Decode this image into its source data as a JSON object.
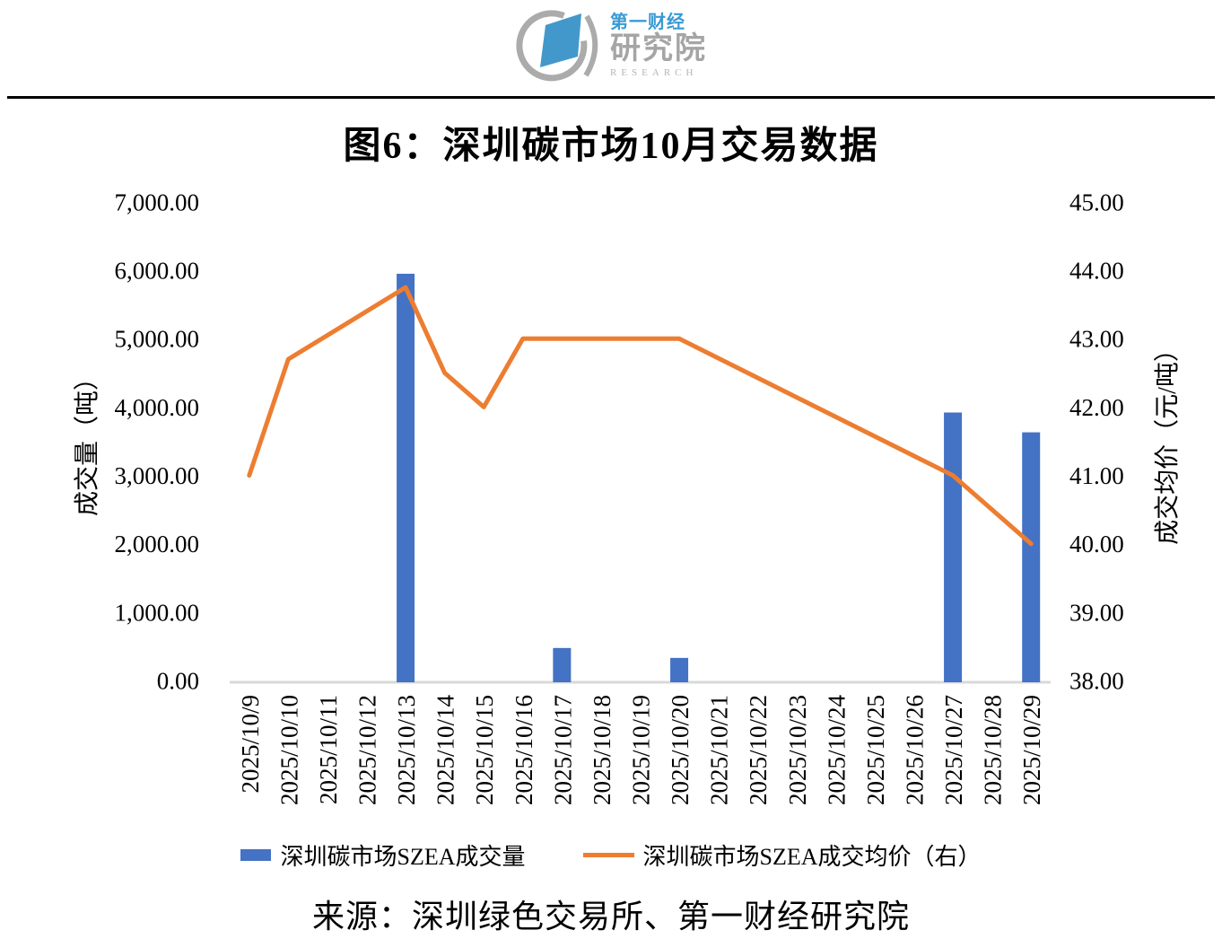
{
  "logo": {
    "brand_line1": "第一财经",
    "brand_line2": "研究院",
    "brand_en": "RESEARCH"
  },
  "title": "图6：深圳碳市场10月交易数据",
  "chart_data": {
    "type": "bar",
    "subtype": "dual-axis bar + line",
    "title": "图6：深圳碳市场10月交易数据",
    "categories": [
      "2025/10/9",
      "2025/10/10",
      "2025/10/11",
      "2025/10/12",
      "2025/10/13",
      "2025/10/14",
      "2025/10/15",
      "2025/10/16",
      "2025/10/17",
      "2025/10/18",
      "2025/10/19",
      "2025/10/20",
      "2025/10/21",
      "2025/10/22",
      "2025/10/23",
      "2025/10/24",
      "2025/10/25",
      "2025/10/26",
      "2025/10/27",
      "2025/10/28",
      "2025/10/29"
    ],
    "series": [
      {
        "name": "深圳碳市场SZEA成交量",
        "type": "bar",
        "axis": "left",
        "color": "#4472c4",
        "values": [
          null,
          null,
          null,
          null,
          5950,
          null,
          null,
          null,
          475,
          null,
          null,
          330,
          null,
          null,
          null,
          null,
          null,
          null,
          3920,
          null,
          3630
        ]
      },
      {
        "name": "深圳碳市场SZEA成交均价（右）",
        "type": "line",
        "axis": "right",
        "color": "#ed7d31",
        "values": [
          41.0,
          42.7,
          null,
          null,
          43.75,
          42.5,
          42.0,
          43.0,
          null,
          null,
          null,
          43.0,
          null,
          null,
          null,
          null,
          null,
          null,
          41.0,
          null,
          40.0
        ]
      }
    ],
    "left_axis": {
      "title": "成交量（吨）",
      "min": 0,
      "max": 7000,
      "step": 1000,
      "tick_format": "#,##0.00"
    },
    "right_axis": {
      "title": "成交均价（元/吨）",
      "min": 38,
      "max": 45,
      "step": 1,
      "tick_format": "0.00"
    },
    "legend_position": "bottom",
    "grid": false,
    "connect_gaps": true,
    "baseline_color": "#d9d9d9"
  },
  "legend": {
    "volume_label": "深圳碳市场SZEA成交量",
    "price_label": "深圳碳市场SZEA成交均价（右）"
  },
  "source": {
    "text": "来源：深圳绿色交易所、第一财经研究院"
  }
}
